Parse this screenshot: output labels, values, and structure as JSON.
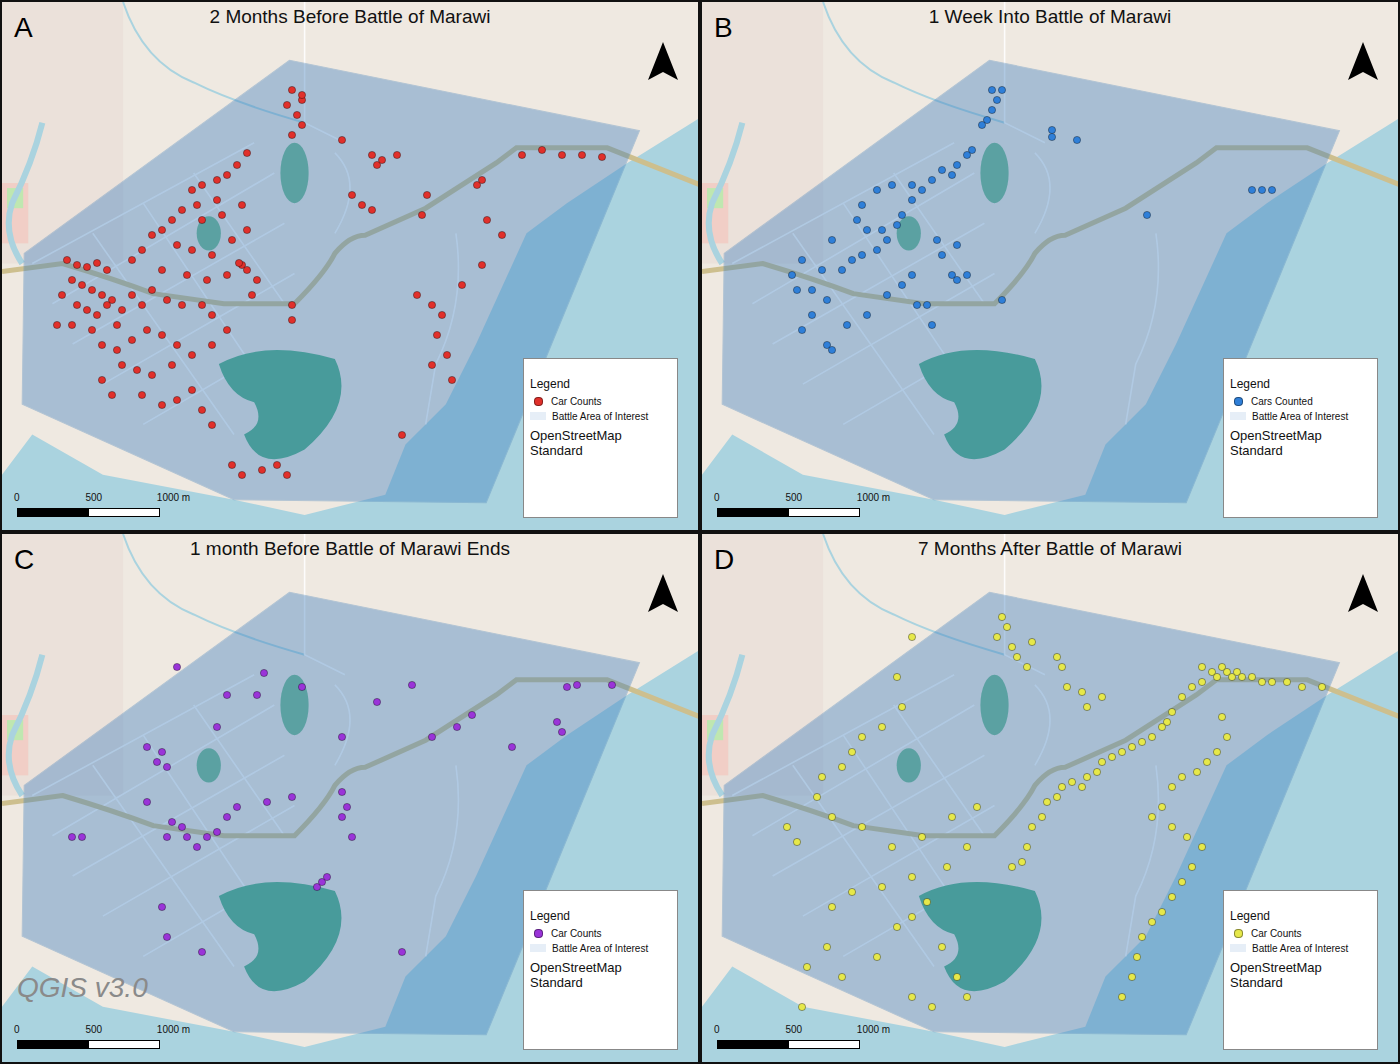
{
  "chart_data": [
    {
      "type": "scatter",
      "panel": "A",
      "title": "2 Months Before Battle of Marawi",
      "xlim": [
        0,
        4872
      ],
      "ylim": [
        0,
        3696
      ],
      "tick_labels": false,
      "legend": "lower right",
      "legend_title": "Legend",
      "legend_items": [
        "Battle Area of Interest",
        "OpenStreetMap Standard"
      ],
      "scale_bar": [
        0,
        500,
        {
          "value": 1000,
          "label": "1000 m"
        }
      ],
      "marker": "circle",
      "series": [
        {
          "name": "Car Counts",
          "color": "#e0302b",
          "x": [
            2030,
            2100,
            1995,
            2065,
            2100,
            2030,
            2100,
            2380,
            2590,
            2625,
            2765,
            2660,
            1715,
            1645,
            1575,
            1505,
            1400,
            1330,
            1505,
            1365,
            1260,
            1190,
            1120,
            1050,
            980,
            910,
            1400,
            1540,
            1680,
            1715,
            1610,
            1470,
            1330,
            1225,
            1120,
            1295,
            1435,
            1575,
            1680,
            1659,
            1715,
            1785,
            1750,
            455,
            525,
            595,
            665,
            735,
            490,
            560,
            630,
            700,
            770,
            420,
            525,
            595,
            665,
            735,
            805,
            840,
            910,
            980,
            1050,
            1155,
            1260,
            1400,
            1470,
            385,
            490,
            630,
            700,
            805,
            910,
            1015,
            1120,
            1225,
            840,
            945,
            1050,
            1190,
            1330,
            1470,
            1575,
            700,
            770,
            980,
            1120,
            1225,
            1330,
            1400,
            1470,
            1610,
            1680,
            1820,
            1925,
            1995,
            2030,
            2030,
            2940,
            2975,
            3325,
            3360,
            3395,
            3500,
            3640,
            3780,
            3920,
            4060,
            4200,
            2450,
            2520,
            2590,
            2905,
            3010,
            3080,
            3045,
            3115,
            3010,
            3150,
            3220,
            3360,
            2800
          ],
          "values": [
            3080,
            3010,
            2975,
            2905,
            2835,
            2765,
            3045,
            2730,
            2625,
            2555,
            2625,
            2590,
            2639,
            2555,
            2485,
            2450,
            2415,
            2380,
            2310,
            2275,
            2240,
            2170,
            2100,
            2065,
            1960,
            1890,
            2170,
            2205,
            2275,
            2100,
            2030,
            1925,
            1960,
            1995,
            1820,
            1785,
            1750,
            1785,
            1855,
            1869,
            1820,
            1750,
            1645,
            1890,
            1855,
            1841,
            1869,
            1820,
            1750,
            1715,
            1680,
            1645,
            1610,
            1645,
            1575,
            1540,
            1505,
            1575,
            1435,
            1540,
            1645,
            1575,
            1680,
            1610,
            1575,
            1575,
            1505,
            1435,
            1435,
            1400,
            1295,
            1260,
            1330,
            1400,
            1365,
            1295,
            1155,
            1120,
            1085,
            1155,
            1225,
            1295,
            1400,
            1050,
            945,
            945,
            875,
            910,
            980,
            840,
            735,
            455,
            385,
            420,
            455,
            385,
            1575,
            1470,
            2205,
            2345,
            2415,
            2450,
            2170,
            2065,
            2625,
            2660,
            2625,
            2625,
            2611,
            2345,
            2275,
            2240,
            1645,
            1575,
            1505,
            1365,
            1225,
            1155,
            1050,
            1715,
            1855,
            665
          ]
        }
      ]
    },
    {
      "type": "scatter",
      "panel": "B",
      "title": "1 Week Into Battle of Marawi",
      "xlim": [
        0,
        4872
      ],
      "ylim": [
        0,
        3696
      ],
      "tick_labels": false,
      "legend": "lower right",
      "legend_title": "Legend",
      "legend_items": [
        "Battle Area of Interest",
        "OpenStreetMap Standard"
      ],
      "scale_bar": [
        0,
        500,
        {
          "value": 1000,
          "label": "1000 m"
        }
      ],
      "marker": "circle",
      "series": [
        {
          "name": "Cars Counted",
          "color": "#2f7fd8",
          "x": [
            2030,
            2100,
            2065,
            2030,
            1995,
            1960,
            2450,
            2450,
            2625,
            1890,
            1855,
            1785,
            1750,
            1680,
            1610,
            1540,
            1470,
            1400,
            1365,
            1260,
            1295,
            1225,
            1120,
            1050,
            980,
            840,
            700,
            630,
            665,
            770,
            875,
            770,
            700,
            875,
            910,
            1015,
            1155,
            1295,
            1400,
            1470,
            1505,
            1575,
            1610,
            1085,
            1120,
            1155,
            1225,
            1330,
            1470,
            1645,
            1750,
            1785,
            1855,
            1785,
            1680,
            2100,
            3115,
            3850,
            3920,
            3990,
            910
          ],
          "values": [
            3080,
            3080,
            3010,
            2940,
            2870,
            2835,
            2800,
            2751,
            2730,
            2660,
            2625,
            2555,
            2485,
            2520,
            2450,
            2380,
            2310,
            2205,
            2135,
            2100,
            2030,
            1960,
            1925,
            1890,
            1820,
            1820,
            1890,
            1785,
            1680,
            1680,
            1610,
            1505,
            1400,
            1295,
            1260,
            1435,
            1505,
            1645,
            1715,
            1785,
            1575,
            1575,
            1435,
            2170,
            2275,
            2100,
            2380,
            2415,
            2415,
            2030,
            1785,
            1750,
            1785,
            1995,
            1925,
            1610,
            2205,
            2380,
            2380,
            2380,
            2030
          ]
        }
      ]
    },
    {
      "type": "scatter",
      "panel": "C",
      "title": "1 month Before Battle of Marawi Ends",
      "xlim": [
        0,
        4872
      ],
      "ylim": [
        0,
        3696
      ],
      "tick_labels": false,
      "legend": "lower right",
      "legend_title": "Legend",
      "legend_items": [
        "Battle Area of Interest",
        "OpenStreetMap Standard"
      ],
      "scale_bar": [
        0,
        500,
        {
          "value": 1000,
          "label": "1000 m"
        }
      ],
      "annotation": "QGIS v3.0",
      "marker": "circle",
      "series": [
        {
          "name": "Car Counts",
          "color": "#9a34d8",
          "x": [
            1834,
            1575,
            1785,
            1505,
            1015,
            1120,
            1085,
            1155,
            1225,
            2100,
            2625,
            2380,
            2870,
            3010,
            3290,
            3185,
            3570,
            3885,
            3920,
            3955,
            4025,
            4270,
            1015,
            1190,
            1260,
            1295,
            1435,
            1505,
            1365,
            1155,
            1575,
            1645,
            1855,
            2030,
            2380,
            2415,
            2380,
            2450,
            560,
            490,
            2205,
            2240,
            2275,
            1120,
            1155,
            2800,
            1400
          ],
          "values": [
            2723,
            2569,
            2569,
            2345,
            2205,
            2170,
            2100,
            2065,
            2765,
            2625,
            2520,
            2275,
            2639,
            2275,
            2429,
            2345,
            2205,
            2380,
            2310,
            2625,
            2639,
            2639,
            1820,
            1680,
            1645,
            1575,
            1575,
            1610,
            1505,
            1575,
            1715,
            1785,
            1820,
            1855,
            1890,
            1785,
            1715,
            1575,
            1575,
            1575,
            1225,
            1260,
            1295,
            1085,
            875,
            770,
            770
          ]
        }
      ]
    },
    {
      "type": "scatter",
      "panel": "D",
      "title": "7 Months After Battle of Marawi",
      "xlim": [
        0,
        4872
      ],
      "ylim": [
        0,
        3696
      ],
      "tick_labels": false,
      "legend": "lower right",
      "legend_title": "Legend",
      "legend_items": [
        "Battle Area of Interest",
        "OpenStreetMap Standard"
      ],
      "scale_bar": [
        0,
        500,
        {
          "value": 1000,
          "label": "1000 m"
        }
      ],
      "marker": "circle",
      "series": [
        {
          "name": "Car Counts",
          "color": "#e6e84a",
          "x": [
            2100,
            2135,
            2065,
            2170,
            2205,
            2275,
            2310,
            2485,
            2520,
            2555,
            2660,
            2695,
            2800,
            3500,
            3570,
            3605,
            3640,
            3675,
            3710,
            3745,
            3780,
            3850,
            3920,
            3990,
            4095,
            4200,
            4340,
            3500,
            3430,
            3360,
            3290,
            3255,
            3220,
            3150,
            3080,
            3010,
            2940,
            2870,
            2800,
            2765,
            2695,
            2660,
            2590,
            2520,
            2485,
            2415,
            2380,
            2310,
            2275,
            2240,
            2170,
            3640,
            3675,
            3605,
            3535,
            3465,
            3360,
            3290,
            3220,
            3150,
            3290,
            3395,
            3500,
            3430,
            3360,
            3290,
            3220,
            3150,
            3080,
            3045,
            3010,
            2940,
            1470,
            1365,
            1400,
            1260,
            1120,
            1050,
            980,
            840,
            805,
            595,
            665,
            910,
            1120,
            1330,
            1540,
            1750,
            1925,
            1855,
            1715,
            1470,
            1260,
            1050,
            910,
            875,
            735,
            980,
            1225,
            1365,
            1470,
            1575,
            1680,
            1785,
            1855,
            1610,
            1470,
            700
          ],
          "values": [
            3115,
            3045,
            2975,
            2905,
            2835,
            2765,
            2940,
            2835,
            2765,
            2625,
            2590,
            2485,
            2555,
            2765,
            2730,
            2695,
            2765,
            2730,
            2695,
            2730,
            2695,
            2695,
            2660,
            2660,
            2660,
            2625,
            2625,
            2660,
            2625,
            2555,
            2450,
            2380,
            2345,
            2275,
            2240,
            2205,
            2170,
            2135,
            2100,
            2030,
            1995,
            1925,
            1960,
            1925,
            1855,
            1820,
            1715,
            1645,
            1505,
            1400,
            1365,
            2415,
            2275,
            2170,
            2100,
            2030,
            1995,
            1925,
            1785,
            1715,
            1645,
            1575,
            1505,
            1365,
            1260,
            1155,
            1050,
            980,
            875,
            735,
            595,
            455,
            2975,
            2695,
            2485,
            2345,
            2275,
            2170,
            2065,
            1995,
            1855,
            1645,
            1540,
            1715,
            1645,
            1505,
            1575,
            1715,
            1785,
            1505,
            1365,
            1295,
            1225,
            1190,
            1085,
            805,
            665,
            595,
            735,
            945,
            1015,
            1120,
            805,
            595,
            455,
            385,
            455,
            385
          ]
        }
      ]
    }
  ]
}
